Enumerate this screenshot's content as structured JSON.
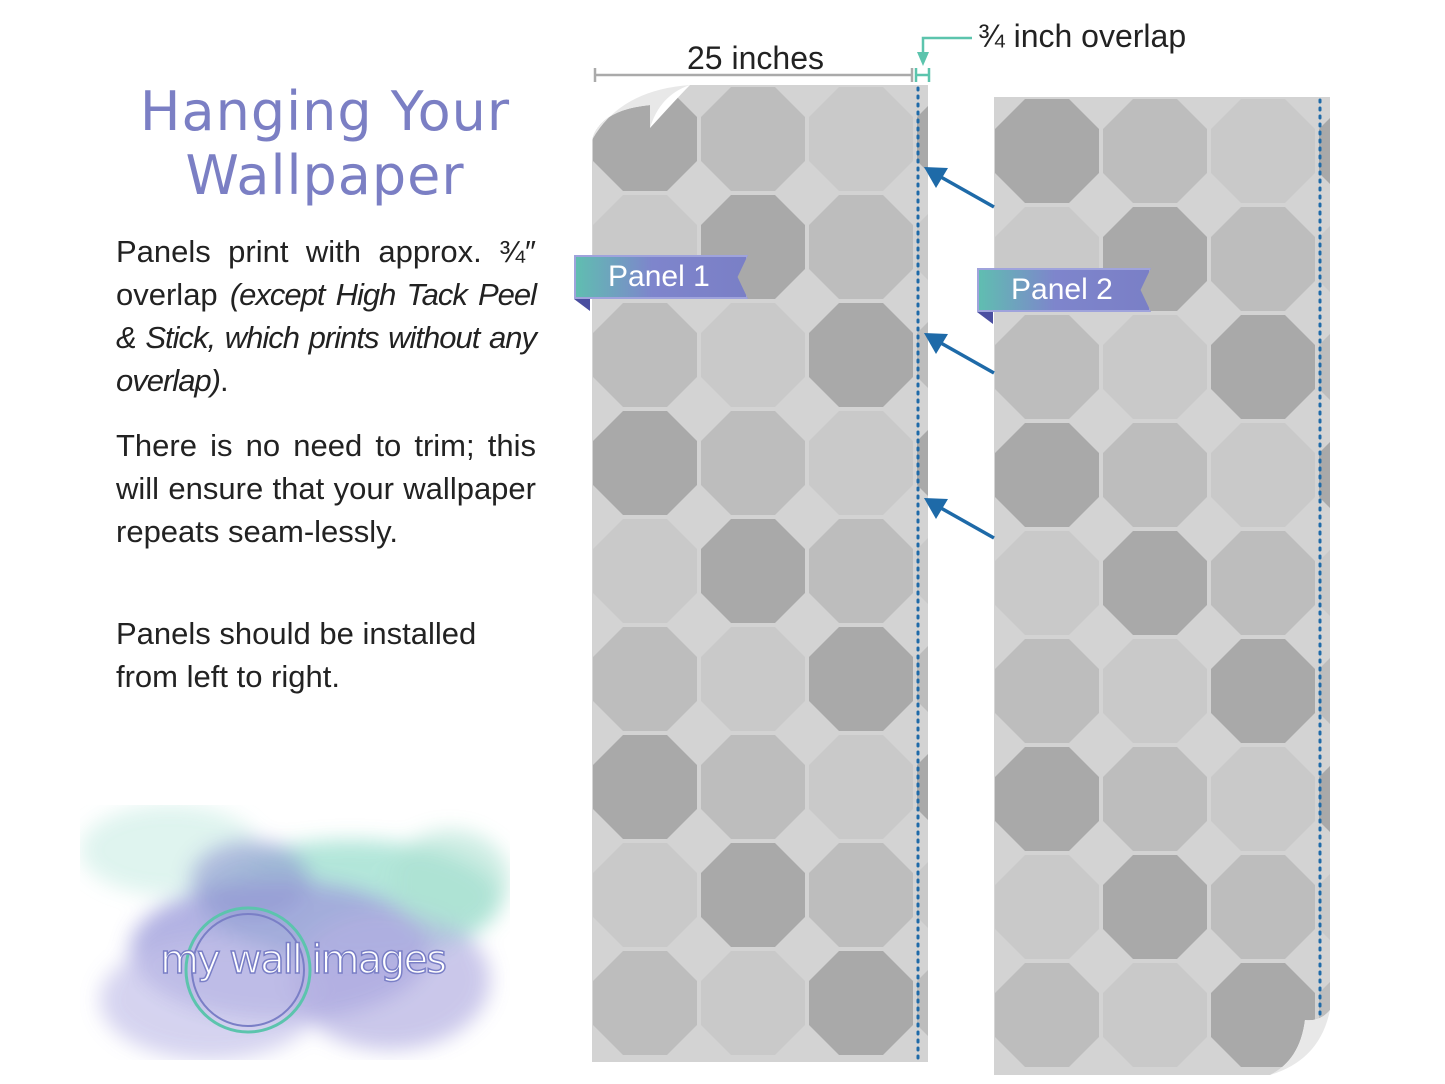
{
  "title": {
    "line1": "Hanging Your",
    "line2": "Wallpaper"
  },
  "paragraphs": {
    "p1_plain": "Panels print with approx. ¾″ overlap ",
    "p1_italic": "(except High Tack Peel & Stick, which prints without any overlap)",
    "p1_end": ".",
    "p2": "There is no need to trim; this will ensure that your wallpaper repeats seam-lessly.",
    "p3": "Panels should be installed from left to right."
  },
  "diagram": {
    "width_label": "25 inches",
    "overlap_label": "¾ inch overlap",
    "panel1_label": "Panel 1",
    "panel2_label": "Panel 2"
  },
  "logo": {
    "text": "my wall images"
  },
  "colors": {
    "title": "#7b7fc4",
    "panel_bg": "#d3d3d3",
    "octagon_dark": "#a9a9a9",
    "octagon_mid": "#bdbdbd",
    "octagon_light": "#c9c9c9",
    "guide_line": "#1e6aa8",
    "overlap_marker": "#5cc4ad",
    "width_marker": "#aaaaaa"
  }
}
